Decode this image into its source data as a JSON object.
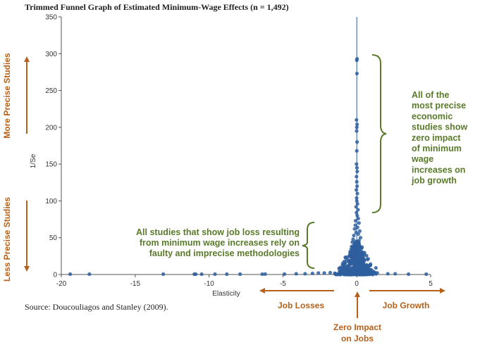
{
  "chart_data": {
    "type": "scatter",
    "title": "Trimmed Funnel Graph of Estimated Minimum-Wage Effects (n = 1,492)",
    "xlabel": "Elasticity",
    "ylabel": "1/Se",
    "xlim": [
      -20,
      5
    ],
    "ylim": [
      0,
      350
    ],
    "x_ticks": [
      -20,
      -15,
      -10,
      -5,
      0,
      5
    ],
    "y_ticks": [
      0,
      50,
      100,
      150,
      200,
      250,
      300,
      350
    ],
    "grid": false,
    "n_points_reported": 1492,
    "marker_color": "#2e5e9e",
    "points": [
      [
        -19.4,
        0.5
      ],
      [
        -18.1,
        0.5
      ],
      [
        -13.1,
        0.5
      ],
      [
        -11.0,
        0.5
      ],
      [
        -10.9,
        0.5
      ],
      [
        -10.5,
        0.5
      ],
      [
        -9.6,
        0.5
      ],
      [
        -8.8,
        0.5
      ],
      [
        -7.9,
        0.5
      ],
      [
        -6.4,
        0.5
      ],
      [
        -6.2,
        0.6
      ],
      [
        -4.9,
        0.6
      ],
      [
        -4.1,
        1
      ],
      [
        -3.5,
        1
      ],
      [
        -3.0,
        1.5
      ],
      [
        -2.6,
        2
      ],
      [
        -2.2,
        2
      ],
      [
        -1.8,
        2.5
      ],
      [
        2.1,
        1
      ],
      [
        2.6,
        1
      ],
      [
        3.5,
        0.5
      ],
      [
        4.7,
        0.5
      ],
      [
        0.02,
        293
      ],
      [
        0.0,
        291
      ],
      [
        0.01,
        273
      ],
      [
        -0.02,
        210
      ],
      [
        0.02,
        204
      ],
      [
        0.0,
        200
      ],
      [
        -0.01,
        195
      ],
      [
        0.02,
        180
      ],
      [
        0.0,
        168
      ],
      [
        -0.02,
        150
      ],
      [
        0.01,
        145
      ],
      [
        0.03,
        140
      ],
      [
        -0.02,
        133
      ],
      [
        0.0,
        126
      ],
      [
        0.02,
        120
      ],
      [
        -0.03,
        115
      ],
      [
        0.04,
        110
      ],
      [
        -0.01,
        104
      ],
      [
        0.0,
        100
      ],
      [
        0.05,
        96
      ],
      [
        -0.05,
        92
      ],
      [
        0.08,
        88
      ],
      [
        -0.02,
        84
      ],
      [
        0.03,
        80
      ],
      [
        0.1,
        76
      ],
      [
        -0.08,
        73
      ],
      [
        0.15,
        70
      ],
      [
        -0.1,
        67
      ],
      [
        0.05,
        64
      ],
      [
        -0.15,
        62
      ],
      [
        0.2,
        59
      ],
      [
        -0.05,
        57
      ],
      [
        0.1,
        55
      ],
      [
        -0.2,
        53
      ],
      [
        0.25,
        50
      ],
      [
        -0.25,
        48
      ],
      [
        0.15,
        46
      ],
      [
        -0.3,
        44
      ]
    ],
    "funnel": {
      "n": 520,
      "center": 0.0,
      "spread": 1.6,
      "ymax": 45
    },
    "annotations": {
      "top_left_label": "More Precise Studies",
      "bottom_left_label": "Less Precise Studies",
      "right_bracket_text": [
        "All of the",
        "most precise",
        "economic",
        "studies show",
        "zero impact",
        "of minimum",
        "wage",
        "increases on",
        "job growth"
      ],
      "left_bracket_text": [
        "All studies that show job loss resulting",
        "from minimum wage increases rely on",
        "faulty and imprecise methodologies"
      ],
      "job_losses": "Job Losses",
      "job_growth": "Job Growth",
      "zero_impact": [
        "Zero Impact",
        "on Jobs"
      ]
    },
    "source": "Source: Doucouliagos and Stanley (2009).",
    "colors": {
      "orange": "#b5611b",
      "green": "#5a7a2a",
      "marker": "#2e5e9e"
    }
  }
}
